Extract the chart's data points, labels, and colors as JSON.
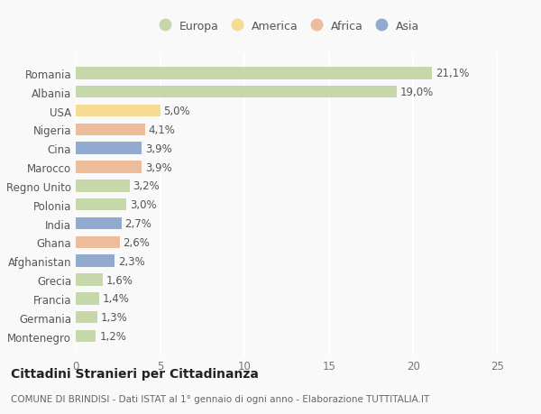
{
  "categories": [
    "Montenegro",
    "Germania",
    "Francia",
    "Grecia",
    "Afghanistan",
    "Ghana",
    "India",
    "Polonia",
    "Regno Unito",
    "Marocco",
    "Cina",
    "Nigeria",
    "USA",
    "Albania",
    "Romania"
  ],
  "values": [
    1.2,
    1.3,
    1.4,
    1.6,
    2.3,
    2.6,
    2.7,
    3.0,
    3.2,
    3.9,
    3.9,
    4.1,
    5.0,
    19.0,
    21.1
  ],
  "labels": [
    "1,2%",
    "1,3%",
    "1,4%",
    "1,6%",
    "2,3%",
    "2,6%",
    "2,7%",
    "3,0%",
    "3,2%",
    "3,9%",
    "3,9%",
    "4,1%",
    "5,0%",
    "19,0%",
    "21,1%"
  ],
  "continent": [
    "Europa",
    "Europa",
    "Europa",
    "Europa",
    "Asia",
    "Africa",
    "Asia",
    "Europa",
    "Europa",
    "Africa",
    "Asia",
    "Africa",
    "America",
    "Europa",
    "Europa"
  ],
  "colors": {
    "Europa": "#b5cc8e",
    "America": "#f5d170",
    "Africa": "#e8a87c",
    "Asia": "#7090c0"
  },
  "title": "Cittadini Stranieri per Cittadinanza",
  "subtitle": "COMUNE DI BRINDISI - Dati ISTAT al 1° gennaio di ogni anno - Elaborazione TUTTITALIA.IT",
  "xlim": [
    0,
    25
  ],
  "xticks": [
    0,
    5,
    10,
    15,
    20,
    25
  ],
  "background_color": "#f9f9f9",
  "bar_alpha": 0.75,
  "grid_color": "#ffffff",
  "label_fontsize": 8.5,
  "title_fontsize": 10,
  "subtitle_fontsize": 7.5,
  "legend_order": [
    "Europa",
    "America",
    "Africa",
    "Asia"
  ],
  "bar_height": 0.65
}
